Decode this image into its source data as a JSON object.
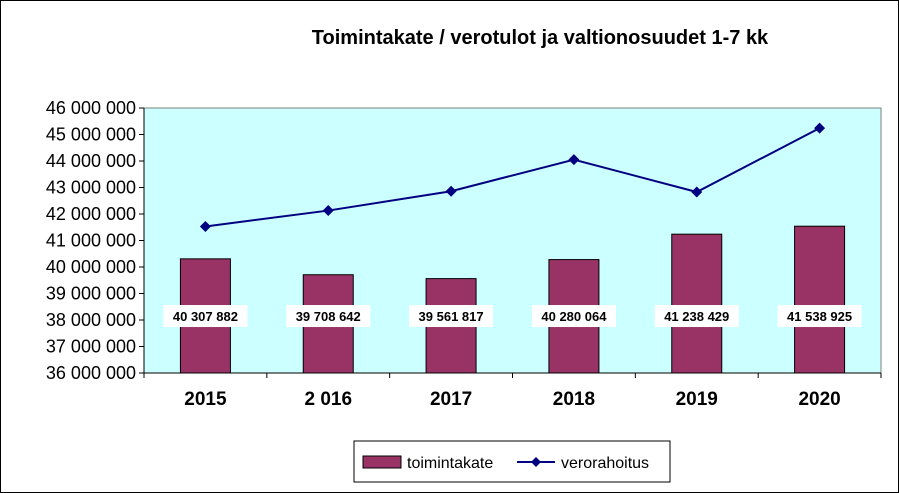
{
  "chart_data": {
    "type": "bar",
    "title": "Toimintakate / verotulot ja valtionosuudet 1-7 kk",
    "categories": [
      "2015",
      "2 016",
      "2017",
      "2018",
      "2019",
      "2020"
    ],
    "series": [
      {
        "name": "toimintakate",
        "type": "bar",
        "color": "#993366",
        "values": [
          40307882,
          39708642,
          39561817,
          40280064,
          41238429,
          41538925
        ],
        "labels": [
          "40 307 882",
          "39 708 642",
          "39 561 817",
          "40 280 064",
          "41 238 429",
          "41 538 925"
        ]
      },
      {
        "name": "verorahoitus",
        "type": "line",
        "color": "#000080",
        "values": [
          41530000,
          42130000,
          42860000,
          44050000,
          42830000,
          45240000
        ]
      }
    ],
    "ylim": [
      36000000,
      46000000
    ],
    "yticks": [
      36000000,
      37000000,
      38000000,
      39000000,
      40000000,
      41000000,
      42000000,
      43000000,
      44000000,
      45000000,
      46000000
    ],
    "ytick_labels": [
      "36 000 000",
      "37 000 000",
      "38 000 000",
      "39 000 000",
      "40 000 000",
      "41 000 000",
      "42 000 000",
      "43 000 000",
      "44 000 000",
      "45 000 000",
      "46 000 000"
    ],
    "plot_background": "#ccffff",
    "grid": false,
    "legend": "bottom"
  }
}
